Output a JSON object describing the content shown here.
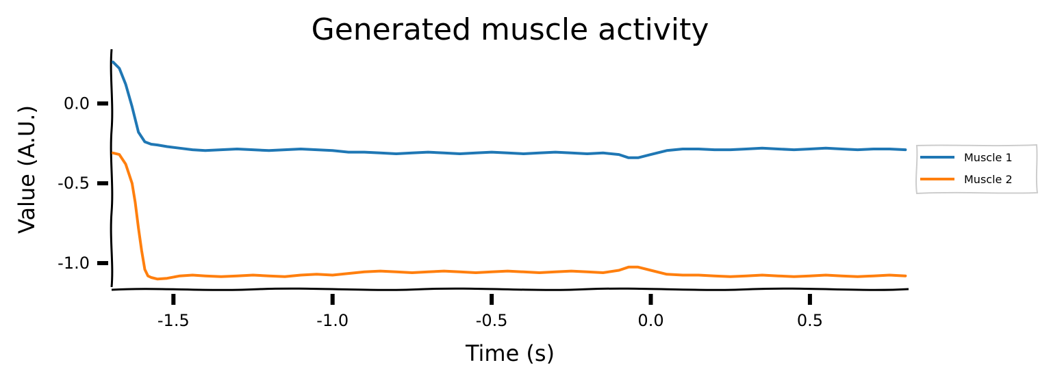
{
  "chart_data": {
    "type": "line",
    "title": "Generated muscle activity",
    "xlabel": "Time (s)",
    "ylabel": "Value (A.U.)",
    "xlim": [
      -1.69,
      0.81
    ],
    "ylim": [
      -1.15,
      0.34
    ],
    "xticks": [
      -1.5,
      -1.0,
      -0.5,
      0.0,
      0.5
    ],
    "xtick_labels": [
      "-1.5",
      "-1.0",
      "-0.5",
      "0.0",
      "0.5"
    ],
    "yticks": [
      0.0,
      -0.5,
      -1.0
    ],
    "ytick_labels": [
      "0.0",
      "-0.5",
      "-1.0"
    ],
    "grid": false,
    "legend": "right, outside",
    "series": [
      {
        "name": "Muscle 1",
        "color": "#1f77b4",
        "x": [
          -1.69,
          -1.67,
          -1.65,
          -1.63,
          -1.61,
          -1.59,
          -1.57,
          -1.55,
          -1.52,
          -1.48,
          -1.44,
          -1.4,
          -1.35,
          -1.3,
          -1.25,
          -1.2,
          -1.15,
          -1.1,
          -1.05,
          -1.0,
          -0.95,
          -0.9,
          -0.85,
          -0.8,
          -0.75,
          -0.7,
          -0.65,
          -0.6,
          -0.55,
          -0.5,
          -0.45,
          -0.4,
          -0.35,
          -0.3,
          -0.25,
          -0.2,
          -0.15,
          -0.1,
          -0.07,
          -0.04,
          0.0,
          0.05,
          0.1,
          0.15,
          0.2,
          0.25,
          0.3,
          0.35,
          0.4,
          0.45,
          0.5,
          0.55,
          0.6,
          0.65,
          0.7,
          0.75,
          0.8
        ],
        "y": [
          0.26,
          0.22,
          0.12,
          -0.02,
          -0.18,
          -0.24,
          -0.255,
          -0.26,
          -0.27,
          -0.28,
          -0.29,
          -0.295,
          -0.29,
          -0.285,
          -0.29,
          -0.295,
          -0.29,
          -0.285,
          -0.29,
          -0.295,
          -0.305,
          -0.305,
          -0.31,
          -0.315,
          -0.31,
          -0.305,
          -0.31,
          -0.315,
          -0.31,
          -0.305,
          -0.31,
          -0.315,
          -0.31,
          -0.305,
          -0.31,
          -0.315,
          -0.31,
          -0.32,
          -0.34,
          -0.34,
          -0.32,
          -0.295,
          -0.285,
          -0.285,
          -0.29,
          -0.29,
          -0.285,
          -0.28,
          -0.285,
          -0.29,
          -0.285,
          -0.28,
          -0.285,
          -0.29,
          -0.285,
          -0.285,
          -0.29
        ]
      },
      {
        "name": "Muscle 2",
        "color": "#ff7f0e",
        "x": [
          -1.69,
          -1.67,
          -1.65,
          -1.63,
          -1.62,
          -1.61,
          -1.6,
          -1.59,
          -1.58,
          -1.57,
          -1.55,
          -1.52,
          -1.48,
          -1.44,
          -1.4,
          -1.35,
          -1.3,
          -1.25,
          -1.2,
          -1.15,
          -1.1,
          -1.05,
          -1.0,
          -0.95,
          -0.9,
          -0.85,
          -0.8,
          -0.75,
          -0.7,
          -0.65,
          -0.6,
          -0.55,
          -0.5,
          -0.45,
          -0.4,
          -0.35,
          -0.3,
          -0.25,
          -0.2,
          -0.15,
          -0.1,
          -0.07,
          -0.04,
          0.0,
          0.05,
          0.1,
          0.15,
          0.2,
          0.25,
          0.3,
          0.35,
          0.4,
          0.45,
          0.5,
          0.55,
          0.6,
          0.65,
          0.7,
          0.75,
          0.8
        ],
        "y": [
          -0.31,
          -0.32,
          -0.38,
          -0.5,
          -0.62,
          -0.78,
          -0.92,
          -1.04,
          -1.08,
          -1.09,
          -1.1,
          -1.095,
          -1.08,
          -1.075,
          -1.08,
          -1.085,
          -1.08,
          -1.075,
          -1.08,
          -1.085,
          -1.075,
          -1.07,
          -1.075,
          -1.065,
          -1.055,
          -1.05,
          -1.055,
          -1.06,
          -1.055,
          -1.05,
          -1.055,
          -1.06,
          -1.055,
          -1.05,
          -1.055,
          -1.06,
          -1.055,
          -1.05,
          -1.055,
          -1.06,
          -1.045,
          -1.025,
          -1.025,
          -1.045,
          -1.07,
          -1.075,
          -1.075,
          -1.08,
          -1.085,
          -1.08,
          -1.075,
          -1.08,
          -1.085,
          -1.08,
          -1.075,
          -1.08,
          -1.085,
          -1.08,
          -1.075,
          -1.08
        ]
      }
    ]
  }
}
